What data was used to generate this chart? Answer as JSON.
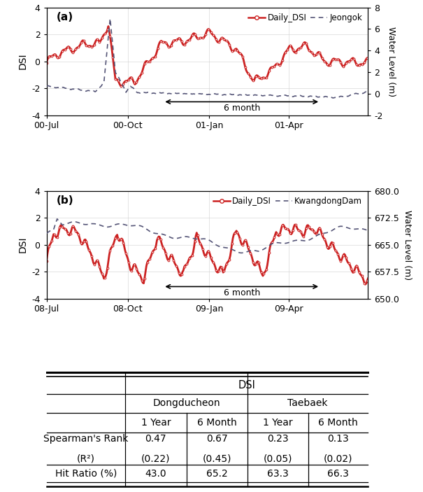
{
  "panel_a": {
    "label": "(a)",
    "xtick_labels": [
      "00-Jul",
      "00-Oct",
      "01-Jan",
      "01-Apr"
    ],
    "ylim_left": [
      -4,
      4
    ],
    "ylim_right": [
      -2,
      8
    ],
    "yticks_left": [
      -4,
      -2,
      0,
      2,
      4
    ],
    "yticks_right": [
      -2,
      0,
      2,
      4,
      6,
      8
    ],
    "ylabel_left": "DSI",
    "ylabel_right": "Water Level (m)",
    "legend_dsi": "Daily_DSI",
    "legend_water": "Jeongok",
    "arrow_text": "6 month"
  },
  "panel_b": {
    "label": "(b)",
    "xtick_labels": [
      "08-Jul",
      "08-Oct",
      "09-Jan",
      "09-Apr"
    ],
    "ylim_left": [
      -4,
      4
    ],
    "ylim_right": [
      650.0,
      680.0
    ],
    "yticks_left": [
      -4,
      -2,
      0,
      2,
      4
    ],
    "yticks_right": [
      650.0,
      657.5,
      665.0,
      672.5,
      680.0
    ],
    "ylabel_left": "DSI",
    "ylabel_right": "Water Level (m)",
    "legend_dsi": "Daily_DSI",
    "legend_water": "KwangdongDam",
    "arrow_text": "6 month"
  },
  "table": {
    "col_header_top": "DSI",
    "col_header_l2": [
      "Dongducheon",
      "Taebaek"
    ],
    "col_header_l3": [
      "1 Year",
      "6 Month",
      "1 Year",
      "6 Month"
    ],
    "row_label_1a": "Spearman's Rank",
    "row_label_1b": "(R²)",
    "row_label_2": "Hit Ratio (%)",
    "data_spearman": [
      "0.47",
      "0.67",
      "0.23",
      "0.13"
    ],
    "data_spearman_r2": [
      "(0.22)",
      "(0.45)",
      "(0.05)",
      "(0.02)"
    ],
    "data_hit": [
      "43.0",
      "65.2",
      "63.3",
      "66.3"
    ]
  },
  "colors": {
    "dsi_line": "#cc2222",
    "water_line": "#555577",
    "grid": "#d0d0d0"
  }
}
